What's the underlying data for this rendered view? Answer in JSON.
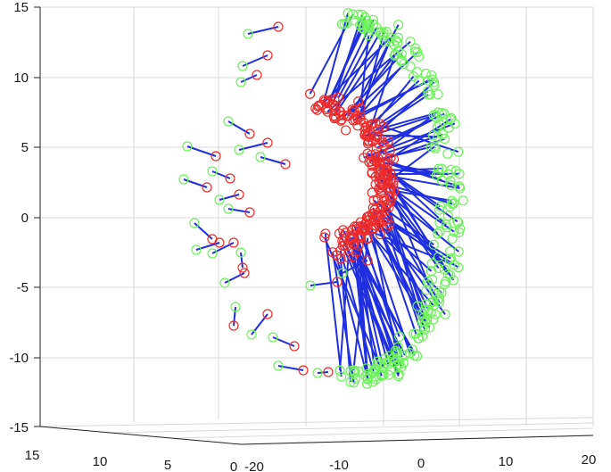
{
  "chart_data": {
    "type": "scatter",
    "title": "",
    "xlabel": "",
    "ylabel": "",
    "grid": true,
    "legend": "none",
    "z_axis": {
      "ticks": [
        "15",
        "10",
        "5",
        "0",
        "-5",
        "-10",
        "-15"
      ],
      "range": [
        -15,
        15
      ]
    },
    "x_axis": {
      "ticks": [
        "15",
        "10",
        "5",
        "0"
      ],
      "range": [
        0,
        15
      ]
    },
    "y_axis": {
      "ticks": [
        "-20",
        "-10",
        "0",
        "10",
        "20"
      ],
      "range": [
        -20,
        20
      ]
    },
    "colors": {
      "lines": "#1f2fe0",
      "start_markers": "#6df25a",
      "end_markers": "#ee2b2b",
      "grid": "#d9d9d9"
    },
    "series": [
      {
        "marker": "circle",
        "color": "#6df25a",
        "role": "outer-arc-points"
      },
      {
        "marker": "circle",
        "color": "#ee2b2b",
        "role": "inner-arc-points"
      }
    ]
  }
}
